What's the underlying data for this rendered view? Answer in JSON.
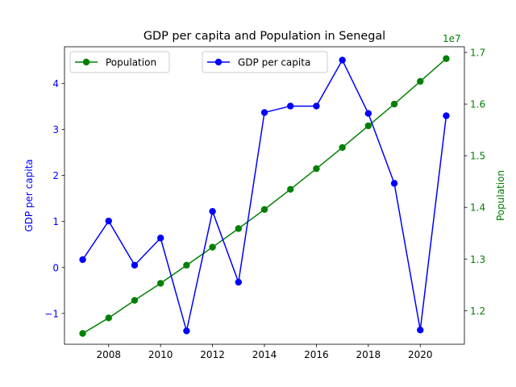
{
  "chart_data": {
    "type": "line",
    "title": "GDP per capita and Population in Senegal",
    "x": [
      2007,
      2008,
      2009,
      2010,
      2011,
      2012,
      2013,
      2014,
      2015,
      2016,
      2017,
      2018,
      2019,
      2020,
      2021
    ],
    "xlim": [
      2006.3,
      2021.7
    ],
    "xticks": [
      2008,
      2010,
      2012,
      2014,
      2016,
      2018,
      2020
    ],
    "xlabel": "",
    "left_axis": {
      "label": "GDP per capita",
      "color": "#0000ff",
      "ylim": [
        -1.67,
        4.8
      ],
      "ticks": [
        -1,
        0,
        1,
        2,
        3,
        4
      ],
      "tick_labels": [
        "−1",
        "0",
        "1",
        "2",
        "3",
        "4"
      ]
    },
    "right_axis": {
      "label": "Population",
      "color": "#008000",
      "ylim": [
        11350000,
        17110000
      ],
      "ticks": [
        12000000,
        13000000,
        14000000,
        15000000,
        16000000,
        17000000
      ],
      "tick_labels": [
        "1.2",
        "1.3",
        "1.4",
        "1.5",
        "1.6",
        "1.7"
      ],
      "offset_label": "1e7"
    },
    "series": [
      {
        "name": "GDP per capita",
        "axis": "left",
        "color": "#0000ff",
        "values": [
          0.17,
          1.01,
          0.05,
          0.64,
          -1.38,
          1.22,
          -0.32,
          3.37,
          3.51,
          3.51,
          4.51,
          3.35,
          1.83,
          -1.36,
          3.3
        ]
      },
      {
        "name": "Population",
        "axis": "right",
        "color": "#008000",
        "values": [
          11560000,
          11860000,
          12200000,
          12530000,
          12880000,
          13230000,
          13590000,
          13960000,
          14350000,
          14750000,
          15160000,
          15580000,
          16000000,
          16440000,
          16880000
        ]
      }
    ],
    "legends": [
      {
        "entries": [
          "Population"
        ],
        "placement": "upper-left"
      },
      {
        "entries": [
          "GDP per capita"
        ],
        "placement": "upper-center"
      }
    ],
    "grid": false
  }
}
